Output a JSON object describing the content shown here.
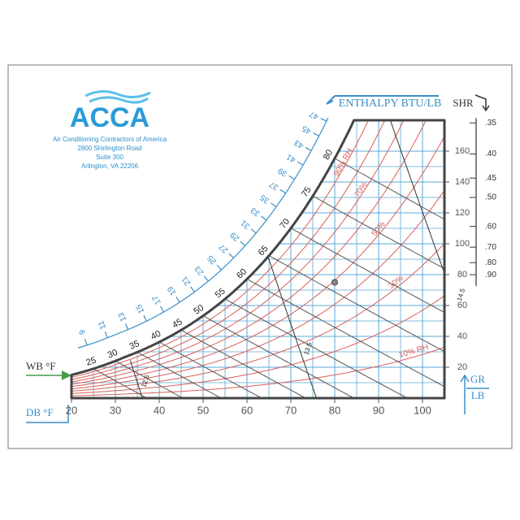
{
  "logo": {
    "name": "ACCA",
    "address": [
      "Air Conditioning Contractors of America",
      "2800 Shirlington Road",
      "Suite 300",
      "Arlington, VA 22206"
    ]
  },
  "chart_data": {
    "type": "psychrometric",
    "x_label": "DB °F",
    "y_label": [
      "GR",
      "LB"
    ],
    "wb_label": "WB °F",
    "enthalpy_label": "ENTHALPY BTU/LB",
    "shr_label": "SHR",
    "xlim": [
      20,
      105
    ],
    "xticks": [
      20,
      30,
      40,
      50,
      60,
      70,
      80,
      90,
      100
    ],
    "ylim": [
      0,
      180
    ],
    "yticks": [
      20,
      40,
      60,
      80,
      100,
      120,
      140,
      160
    ],
    "grid": true,
    "grid_color": "#5aa9d8",
    "rh_color": "#d8605a",
    "line_color": "#555555",
    "rh_values": [
      10,
      20,
      30,
      40,
      50,
      60,
      70,
      80,
      90
    ],
    "rh_labels": [
      "10% RH",
      null,
      "30%",
      null,
      "50%",
      null,
      "70%",
      null,
      "90% RH"
    ],
    "wb_values": [
      25,
      30,
      35,
      40,
      45,
      50,
      55,
      60,
      65,
      70,
      75,
      80
    ],
    "enthalpy_values": [
      9,
      11,
      13,
      15,
      17,
      19,
      21,
      23,
      25,
      27,
      29,
      31,
      33,
      35,
      37,
      39,
      41,
      43,
      45,
      47
    ],
    "volume_values": [
      12.5,
      13.5,
      14.5
    ],
    "shr_ticks": [
      {
        "value": 0.35,
        "label": ".35"
      },
      {
        "value": 0.4,
        "label": ".40"
      },
      {
        "value": 0.45,
        "label": ".45"
      },
      {
        "value": 0.5,
        "label": ".50"
      },
      {
        "value": 0.6,
        "label": ".60"
      },
      {
        "value": 0.7,
        "label": ".70"
      },
      {
        "value": 0.8,
        "label": ".80"
      },
      {
        "value": 0.9,
        "label": ".90"
      }
    ],
    "point": {
      "x": 80,
      "y": 75
    }
  }
}
